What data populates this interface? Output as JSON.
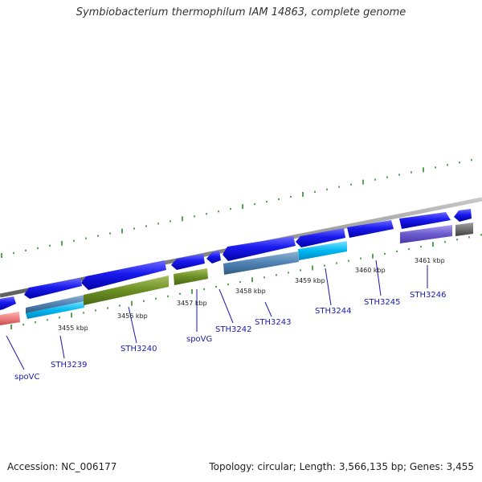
{
  "title": "Symbiobacterium thermophilum IAM 14863, complete genome",
  "accession": "Accession: NC_006177",
  "summary": "Topology: circular; Length: 3,566,135 bp; Genes: 3,455",
  "kbp_labels": [
    "3455 kbp",
    "3456 kbp",
    "3457 kbp",
    "3458 kbp",
    "3459 kbp",
    "3460 kbp",
    "3461 kbp"
  ],
  "gene_labels": [
    "spoVC",
    "STH3239",
    "STH3240",
    "spoVG",
    "STH3242",
    "STH3243",
    "STH3244",
    "STH3245",
    "STH3246"
  ],
  "colors": {
    "backbone": "#8a8a8a",
    "tick": "#2e8b2e",
    "forward_arrow": "#1010e0",
    "cyan": "#00b4f0",
    "steelblue": "#4f82b4",
    "olive": "#6b8e23",
    "salmon": "#f08080",
    "purple": "#6a5acd",
    "gray": "#707070"
  }
}
